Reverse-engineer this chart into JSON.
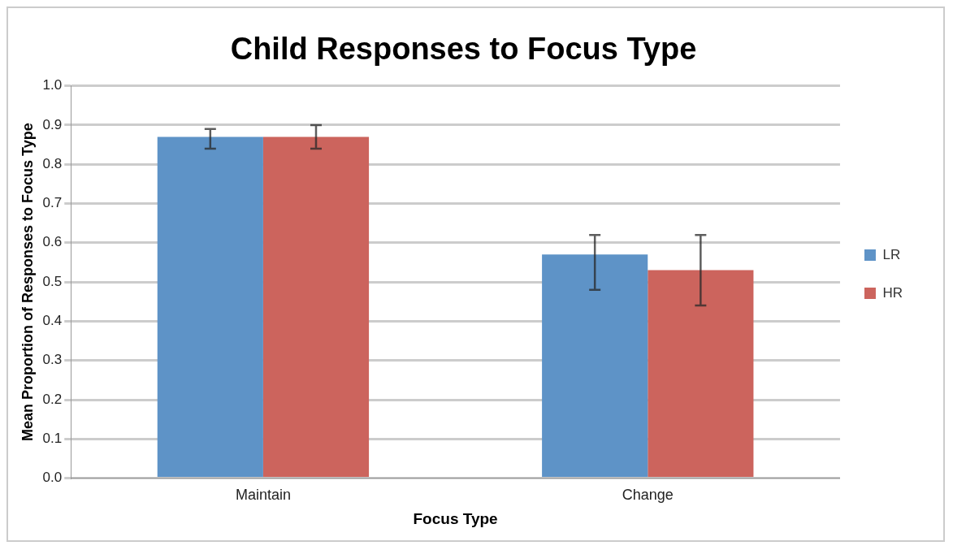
{
  "chart_data": {
    "type": "bar",
    "title": "Child Responses to Focus Type",
    "xlabel": "Focus Type",
    "ylabel": "Mean Proportion of Responses to Focus Type",
    "categories": [
      "Maintain",
      "Change"
    ],
    "series": [
      {
        "name": "LR",
        "color": "#5e93c7",
        "values": [
          0.87,
          0.57
        ],
        "errors": [
          [
            0.84,
            0.89
          ],
          [
            0.48,
            0.62
          ]
        ]
      },
      {
        "name": "HR",
        "color": "#cc645d",
        "values": [
          0.87,
          0.53
        ],
        "errors": [
          [
            0.84,
            0.9
          ],
          [
            0.44,
            0.62
          ]
        ]
      }
    ],
    "ylim": [
      0,
      1
    ],
    "yticks": [
      {
        "value": 0,
        "label": "0.0"
      },
      0.1,
      0.2,
      0.3,
      0.4,
      0.5,
      0.6,
      0.7,
      0.8,
      0.9,
      {
        "value": 1,
        "label": "1.0"
      }
    ],
    "grid": "y",
    "legend": "right"
  }
}
